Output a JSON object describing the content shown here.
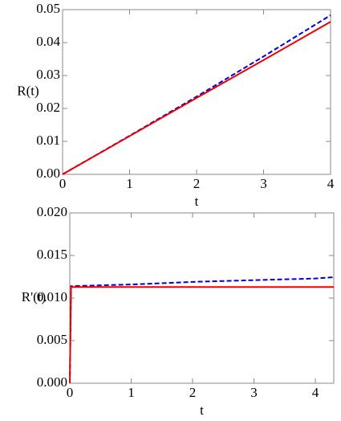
{
  "chart_data": [
    {
      "type": "line",
      "x_label": "t",
      "y_label": "R(t)",
      "xlim": [
        0,
        4
      ],
      "ylim": [
        0,
        0.05
      ],
      "xticks": [
        0,
        1,
        2,
        3,
        4
      ],
      "yticks": [
        {
          "value": 0,
          "label": "0.00"
        },
        {
          "value": 0.01,
          "label": "0.01"
        },
        {
          "value": 0.02,
          "label": "0.02"
        },
        {
          "value": 0.03,
          "label": "0.03"
        },
        {
          "value": 0.04,
          "label": "0.04"
        },
        {
          "value": 0.05,
          "label": "0.05"
        }
      ],
      "x": [
        0,
        1,
        2,
        3,
        4
      ],
      "series": [
        {
          "color": "#0000dd",
          "dash": true,
          "values": [
            0,
            0.0117,
            0.0236,
            0.0358,
            0.0483
          ]
        },
        {
          "color": "#ee0000",
          "dash": false,
          "values": [
            0,
            0.0116,
            0.0232,
            0.0347,
            0.0463
          ]
        }
      ]
    },
    {
      "type": "line",
      "x_label": "t",
      "y_label": "R'(t)",
      "xlim": [
        0,
        4.3
      ],
      "ylim": [
        0,
        0.02
      ],
      "xticks": [
        0,
        1,
        2,
        3,
        4
      ],
      "yticks": [
        {
          "value": 0,
          "label": "0.000"
        },
        {
          "value": 0.005,
          "label": "0.005"
        },
        {
          "value": 0.01,
          "label": "0.010"
        },
        {
          "value": 0.015,
          "label": "0.015"
        },
        {
          "value": 0.02,
          "label": "0.020"
        }
      ],
      "x": [
        0,
        0.02,
        1,
        2,
        3,
        4,
        4.3
      ],
      "series": [
        {
          "color": "#0000dd",
          "dash": true,
          "values": [
            0,
            0.0114,
            0.0116,
            0.0119,
            0.0121,
            0.0123,
            0.01245
          ]
        },
        {
          "color": "#ee0000",
          "dash": false,
          "values": [
            0,
            0.0113,
            0.0113,
            0.0113,
            0.0113,
            0.0113,
            0.0113
          ]
        }
      ]
    }
  ]
}
